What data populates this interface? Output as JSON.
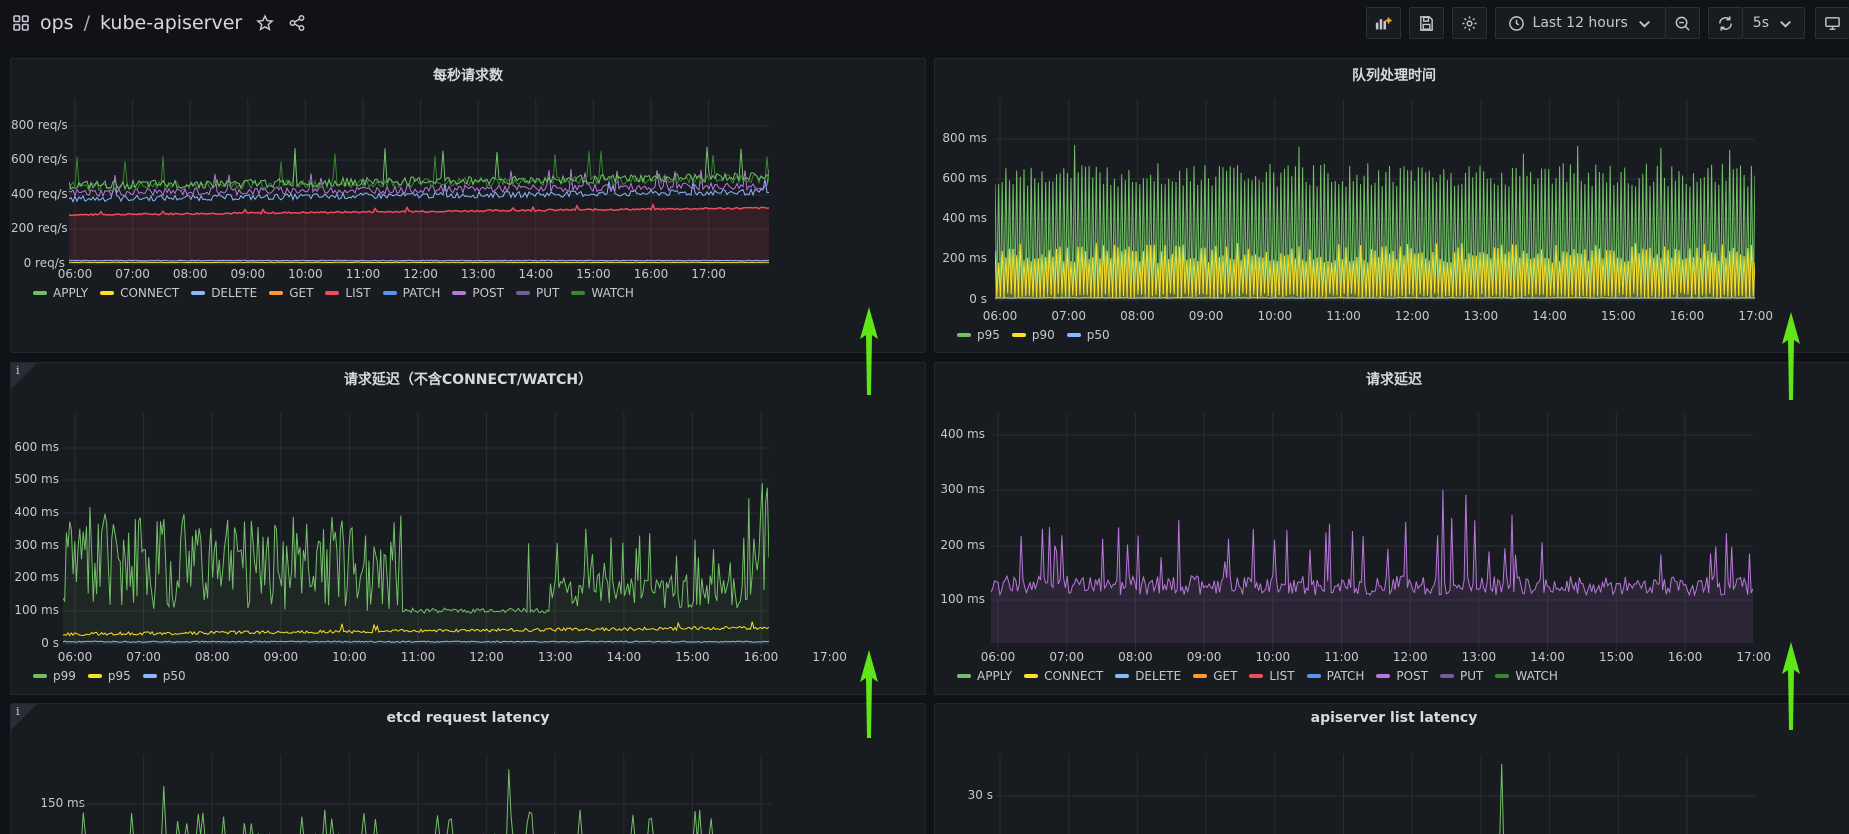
{
  "nav": {
    "folder": "ops",
    "separator": "/",
    "dashboard": "kube-apiserver",
    "time_range": "Last 12 hours",
    "refresh": "5s"
  },
  "x_ticks": [
    "06:00",
    "07:00",
    "08:00",
    "09:00",
    "10:00",
    "11:00",
    "12:00",
    "13:00",
    "14:00",
    "15:00",
    "16:00",
    "17:00"
  ],
  "panels": {
    "qps": {
      "title": "每秒请求数",
      "y_ticks": [
        "800 req/s",
        "600 req/s",
        "400 req/s",
        "200 req/s",
        "0 req/s"
      ],
      "legend": [
        {
          "name": "APPLY",
          "color": "#73bf69"
        },
        {
          "name": "CONNECT",
          "color": "#fade2a"
        },
        {
          "name": "DELETE",
          "color": "#8ab8ff"
        },
        {
          "name": "GET",
          "color": "#ff9830"
        },
        {
          "name": "LIST",
          "color": "#f2495c"
        },
        {
          "name": "PATCH",
          "color": "#5794f2"
        },
        {
          "name": "POST",
          "color": "#b877d9"
        },
        {
          "name": "PUT",
          "color": "#705da0"
        },
        {
          "name": "WATCH",
          "color": "#37872d"
        }
      ]
    },
    "queue": {
      "title": "队列处理时间",
      "y_ticks": [
        "800 ms",
        "600 ms",
        "400 ms",
        "200 ms",
        "0 s"
      ],
      "legend": [
        {
          "name": "p95",
          "color": "#73bf69"
        },
        {
          "name": "p90",
          "color": "#fade2a"
        },
        {
          "name": "p50",
          "color": "#8ab8ff"
        }
      ]
    },
    "latency_nowatch": {
      "title": "请求延迟（不含CONNECT/WATCH）",
      "info": "i",
      "y_ticks": [
        "600 ms",
        "500 ms",
        "400 ms",
        "300 ms",
        "200 ms",
        "100 ms",
        "0 s"
      ],
      "legend": [
        {
          "name": "p99",
          "color": "#73bf69"
        },
        {
          "name": "p95",
          "color": "#fade2a"
        },
        {
          "name": "p50",
          "color": "#8ab8ff"
        }
      ]
    },
    "latency": {
      "title": "请求延迟",
      "y_ticks": [
        "400 ms",
        "300 ms",
        "200 ms",
        "100 ms"
      ],
      "legend": [
        {
          "name": "APPLY",
          "color": "#73bf69"
        },
        {
          "name": "CONNECT",
          "color": "#fade2a"
        },
        {
          "name": "DELETE",
          "color": "#8ab8ff"
        },
        {
          "name": "GET",
          "color": "#ff9830"
        },
        {
          "name": "LIST",
          "color": "#f2495c"
        },
        {
          "name": "PATCH",
          "color": "#5794f2"
        },
        {
          "name": "POST",
          "color": "#b877d9"
        },
        {
          "name": "PUT",
          "color": "#705da0"
        },
        {
          "name": "WATCH",
          "color": "#37872d"
        }
      ]
    },
    "etcd": {
      "title": "etcd request latency",
      "info": "i",
      "y_ticks": [
        "150 ms"
      ]
    },
    "list": {
      "title": "apiserver list latency",
      "y_ticks": [
        "30 s"
      ]
    }
  },
  "colors": {
    "arrow": "#5fe619",
    "background": "#111217",
    "panel": "#181b1f"
  }
}
